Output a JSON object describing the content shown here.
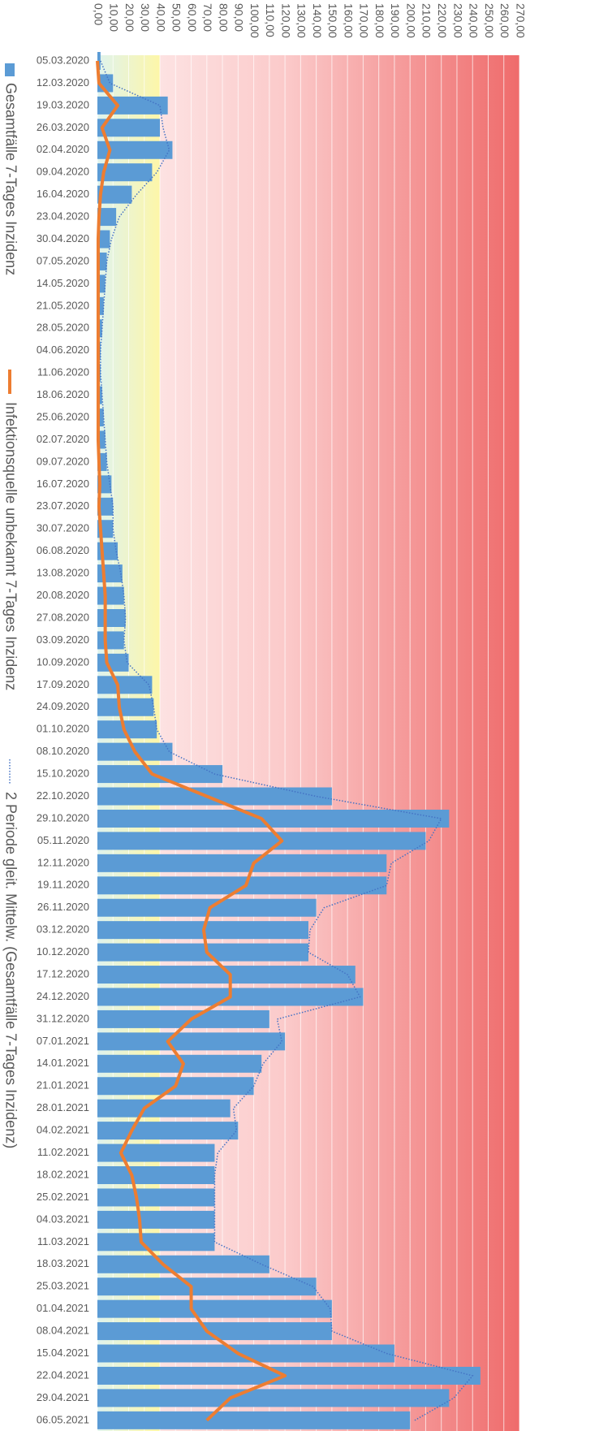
{
  "chart_data": {
    "type": "bar",
    "categories": [
      "05.03.2020",
      "12.03.2020",
      "19.03.2020",
      "26.03.2020",
      "02.04.2020",
      "09.04.2020",
      "16.04.2020",
      "23.04.2020",
      "30.04.2020",
      "07.05.2020",
      "14.05.2020",
      "21.05.2020",
      "28.05.2020",
      "04.06.2020",
      "11.06.2020",
      "18.06.2020",
      "25.06.2020",
      "02.07.2020",
      "09.07.2020",
      "16.07.2020",
      "23.07.2020",
      "30.07.2020",
      "06.08.2020",
      "13.08.2020",
      "20.08.2020",
      "27.08.2020",
      "03.09.2020",
      "10.09.2020",
      "17.09.2020",
      "24.09.2020",
      "01.10.2020",
      "08.10.2020",
      "15.10.2020",
      "22.10.2020",
      "29.10.2020",
      "05.11.2020",
      "12.11.2020",
      "19.11.2020",
      "26.11.2020",
      "03.12.2020",
      "10.12.2020",
      "17.12.2020",
      "24.12.2020",
      "31.12.2020",
      "07.01.2021",
      "14.01.2021",
      "21.01.2021",
      "28.01.2021",
      "04.02.2021",
      "11.02.2021",
      "18.02.2021",
      "25.02.2021",
      "04.03.2021",
      "11.03.2021",
      "18.03.2021",
      "25.03.2021",
      "01.04.2021",
      "08.04.2021",
      "15.04.2021",
      "22.04.2021",
      "29.04.2021",
      "06.05.2021"
    ],
    "series": [
      {
        "name": "Gesamtfälle 7-Tages Inzidenz",
        "type": "bar",
        "color": "#5b9bd5",
        "values": [
          2,
          10,
          45,
          40,
          48,
          35,
          22,
          12,
          8,
          6,
          5,
          4,
          3,
          2,
          2,
          3,
          4,
          5,
          6,
          9,
          10,
          10,
          13,
          16,
          17,
          18,
          17,
          20,
          35,
          36,
          38,
          48,
          80,
          150,
          225,
          210,
          185,
          185,
          140,
          135,
          135,
          165,
          170,
          110,
          120,
          105,
          100,
          85,
          90,
          75,
          75,
          75,
          75,
          75,
          110,
          140,
          150,
          150,
          190,
          245,
          225,
          200
        ]
      },
      {
        "name": "Infektionsquelle unbekannt 7-Tages Inzidenz",
        "type": "line",
        "color": "#ed7d31",
        "values": [
          0,
          1,
          13,
          3,
          8,
          4,
          2,
          1,
          0.5,
          0.5,
          0.5,
          0.5,
          0.5,
          0.5,
          0.5,
          0.5,
          0.5,
          0.5,
          1,
          1.5,
          1,
          2,
          3,
          4,
          5,
          5,
          5,
          6,
          13,
          14,
          17,
          24,
          35,
          70,
          105,
          118,
          100,
          95,
          72,
          68,
          70,
          85,
          85,
          60,
          45,
          55,
          50,
          30,
          22,
          15,
          22,
          25,
          27,
          28,
          42,
          60,
          60,
          70,
          90,
          120,
          85,
          70
        ]
      },
      {
        "name": "2 Periode gleit. Mittelw. (Gesamtfälle 7-Tages Inzidenz)",
        "type": "dotted",
        "color": "#4472c4",
        "values": [
          2,
          8,
          40,
          42,
          46,
          38,
          25,
          14,
          9,
          6,
          5,
          4,
          3,
          2,
          2,
          3,
          4,
          5,
          6,
          8,
          10,
          10,
          12,
          15,
          17,
          18,
          17,
          19,
          33,
          36,
          38,
          46,
          75,
          140,
          220,
          212,
          188,
          185,
          145,
          136,
          135,
          160,
          168,
          115,
          118,
          106,
          100,
          87,
          89,
          77,
          75,
          75,
          75,
          75,
          105,
          138,
          149,
          150,
          185,
          240,
          228,
          203
        ]
      }
    ],
    "xlim": [
      0,
      270
    ],
    "xticks": [
      {
        "value": 0,
        "label": "0,00"
      },
      {
        "value": 10,
        "label": "10,00"
      },
      {
        "value": 20,
        "label": "20,00"
      },
      {
        "value": 30,
        "label": "30,00"
      },
      {
        "value": 40,
        "label": "40,00"
      },
      {
        "value": 50,
        "label": "50,00"
      },
      {
        "value": 60,
        "label": "60,00"
      },
      {
        "value": 70,
        "label": "70,00"
      },
      {
        "value": 80,
        "label": "80,00"
      },
      {
        "value": 90,
        "label": "90,00"
      },
      {
        "value": 100,
        "label": "100,00"
      },
      {
        "value": 110,
        "label": "110,00"
      },
      {
        "value": 120,
        "label": "120,00"
      },
      {
        "value": 130,
        "label": "130,00"
      },
      {
        "value": 140,
        "label": "140,00"
      },
      {
        "value": 150,
        "label": "150,00"
      },
      {
        "value": 160,
        "label": "160,00"
      },
      {
        "value": 170,
        "label": "170,00"
      },
      {
        "value": 180,
        "label": "180,00"
      },
      {
        "value": 190,
        "label": "190,00"
      },
      {
        "value": 200,
        "label": "200,00"
      },
      {
        "value": 210,
        "label": "210,00"
      },
      {
        "value": 220,
        "label": "220,00"
      },
      {
        "value": 230,
        "label": "230,00"
      },
      {
        "value": 240,
        "label": "240,00"
      },
      {
        "value": 250,
        "label": "250,00"
      },
      {
        "value": 260,
        "label": "260,00"
      },
      {
        "value": 270,
        "label": "270,00"
      }
    ],
    "grid": true,
    "legend": "left"
  }
}
